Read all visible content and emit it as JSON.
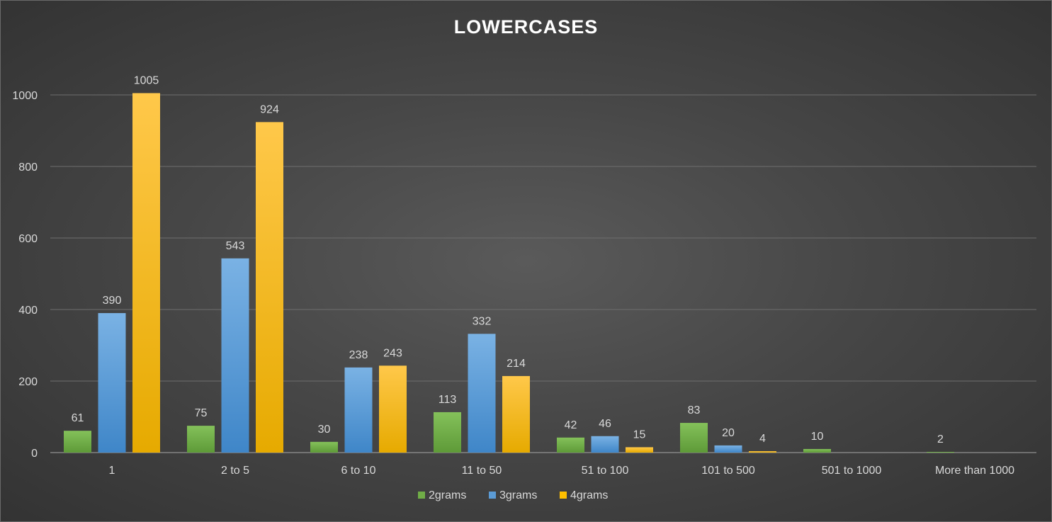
{
  "chart_data": {
    "type": "bar",
    "title": "LOWERCASES",
    "xlabel": "",
    "ylabel": "",
    "ylim": [
      0,
      1000
    ],
    "yticks": [
      0,
      200,
      400,
      600,
      800,
      1000
    ],
    "grid": true,
    "legend_position": "bottom",
    "categories": [
      "1",
      "2 to 5",
      "6 to 10",
      "11 to 50",
      "51 to 100",
      "101 to 500",
      "501 to 1000",
      "More than 1000"
    ],
    "series": [
      {
        "name": "2grams",
        "color": "#70ad47",
        "values": [
          61,
          75,
          30,
          113,
          42,
          83,
          10,
          2
        ]
      },
      {
        "name": "3grams",
        "color": "#5b9bd5",
        "values": [
          390,
          543,
          238,
          332,
          46,
          20,
          null,
          null
        ]
      },
      {
        "name": "4grams",
        "color": "#ffc000",
        "values": [
          1005,
          924,
          243,
          214,
          15,
          4,
          null,
          null
        ]
      }
    ]
  }
}
